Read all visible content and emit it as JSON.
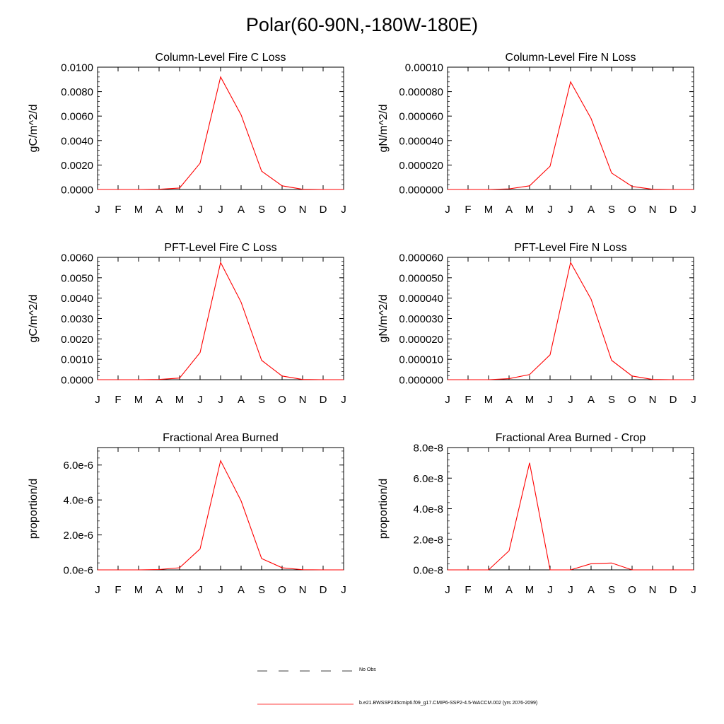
{
  "page_title": "Polar(60-90N,-180W-180E)",
  "months": [
    "J",
    "F",
    "M",
    "A",
    "M",
    "J",
    "J",
    "A",
    "S",
    "O",
    "N",
    "D",
    "J"
  ],
  "line_color": "#ff0000",
  "legend": {
    "obs_label": "No Obs",
    "model_label": "b.e21.BWSSP245cmip6.f09_g17.CMIP6-SSP2-4.5-WACCM.002 (yrs 2076-2099)"
  },
  "chart_data": [
    {
      "type": "line",
      "title": "Column-Level Fire C Loss",
      "ylabel": "gC/m^2/d",
      "ylim": [
        0,
        0.01
      ],
      "yticks": [
        0,
        0.002,
        0.004,
        0.006,
        0.008,
        0.01
      ],
      "yticklabels": [
        "0.0000",
        "0.0020",
        "0.0040",
        "0.0060",
        "0.0080",
        "0.0100"
      ],
      "series": [
        {
          "values": [
            0,
            0,
            0,
            2e-05,
            0.00012,
            0.00215,
            0.0092,
            0.0061,
            0.0015,
            0.0003,
            2e-05,
            0,
            0
          ]
        }
      ]
    },
    {
      "type": "line",
      "title": "Column-Level Fire N Loss",
      "ylabel": "gN/m^2/d",
      "ylim": [
        0,
        0.0001
      ],
      "yticks": [
        0,
        2e-05,
        4e-05,
        6e-05,
        8e-05,
        0.0001
      ],
      "yticklabels": [
        "0.000000",
        "0.000020",
        "0.000040",
        "0.000060",
        "0.000080",
        "0.00010"
      ],
      "series": [
        {
          "values": [
            0,
            0,
            0,
            5e-07,
            3e-06,
            1.9e-05,
            8.8e-05,
            5.8e-05,
            1.35e-05,
            2.5e-06,
            2e-07,
            0,
            0
          ]
        }
      ]
    },
    {
      "type": "line",
      "title": "PFT-Level Fire C Loss",
      "ylabel": "gC/m^2/d",
      "ylim": [
        0,
        0.006
      ],
      "yticks": [
        0,
        0.001,
        0.002,
        0.003,
        0.004,
        0.005,
        0.006
      ],
      "yticklabels": [
        "0.0000",
        "0.0010",
        "0.0020",
        "0.0030",
        "0.0040",
        "0.0050",
        "0.0060"
      ],
      "series": [
        {
          "values": [
            0,
            0,
            0,
            1e-05,
            8e-05,
            0.00133,
            0.00575,
            0.0038,
            0.00095,
            0.00018,
            1e-05,
            0,
            0
          ]
        }
      ]
    },
    {
      "type": "line",
      "title": "PFT-Level Fire N Loss",
      "ylabel": "gN/m^2/d",
      "ylim": [
        0,
        6e-05
      ],
      "yticks": [
        0,
        1e-05,
        2e-05,
        3e-05,
        4e-05,
        5e-05,
        6e-05
      ],
      "yticklabels": [
        "0.000000",
        "0.000010",
        "0.000020",
        "0.000030",
        "0.000040",
        "0.000050",
        "0.000060"
      ],
      "series": [
        {
          "values": [
            0,
            0,
            0,
            5e-07,
            2.5e-06,
            1.22e-05,
            5.75e-05,
            3.95e-05,
            9.5e-06,
            1.8e-06,
            1e-07,
            0,
            0
          ]
        }
      ]
    },
    {
      "type": "line",
      "title": "Fractional Area Burned",
      "ylabel": "proportion/d",
      "ylim": [
        0,
        7e-06
      ],
      "yticks": [
        0,
        2e-06,
        4e-06,
        6e-06
      ],
      "yticklabels": [
        "0.0e-6",
        "2.0e-6",
        "4.0e-6",
        "6.0e-6"
      ],
      "series": [
        {
          "values": [
            0,
            0,
            0,
            2e-08,
            1.2e-07,
            1.2e-06,
            6.25e-06,
            3.95e-06,
            6.5e-07,
            1.2e-07,
            1e-08,
            0,
            0
          ]
        }
      ]
    },
    {
      "type": "line",
      "title": "Fractional Area Burned - Crop",
      "ylabel": "proportion/d",
      "ylim": [
        0,
        8e-08
      ],
      "yticks": [
        0,
        2e-08,
        4e-08,
        6e-08,
        8e-08
      ],
      "yticklabels": [
        "0.0e-8",
        "2.0e-8",
        "4.0e-8",
        "6.0e-8",
        "8.0e-8"
      ],
      "series": [
        {
          "values": [
            0,
            0,
            0,
            1.25e-08,
            7e-08,
            0,
            0,
            4e-09,
            4.5e-09,
            0,
            0,
            0,
            0
          ]
        }
      ]
    }
  ]
}
